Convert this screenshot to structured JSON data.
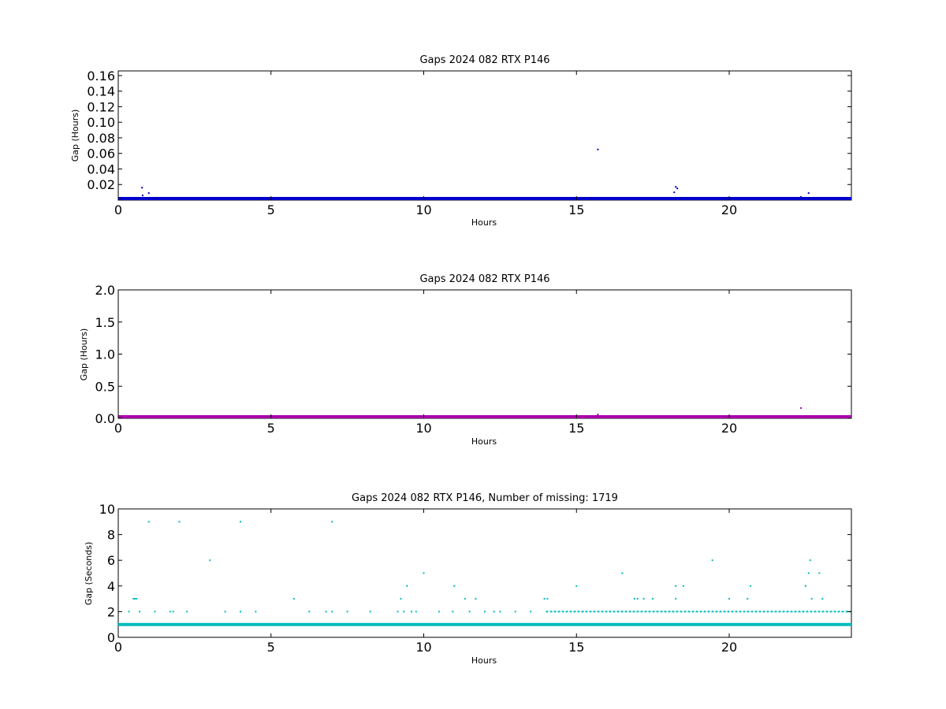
{
  "chart_data": [
    {
      "type": "scatter",
      "title": "Gaps 2024 082 RTX  P146",
      "xlabel": "Hours",
      "ylabel": "Gap (Hours)",
      "xlim": [
        0,
        24
      ],
      "ylim": [
        0,
        0.166
      ],
      "xticks": [
        0,
        5,
        10,
        15,
        20
      ],
      "yticks": [
        0.02,
        0.04,
        0.06,
        0.08,
        0.1,
        0.12,
        0.14,
        0.16
      ],
      "ytick_labels": [
        "0.02",
        "0.04",
        "0.06",
        "0.08",
        "0.10",
        "0.12",
        "0.14",
        "0.16"
      ],
      "color": "#0000cc",
      "baseline": {
        "y": 0.0003,
        "x_start": 0,
        "x_end": 24
      },
      "series": [
        {
          "x": [
            0.78,
            0.8,
            0.82,
            1.0,
            1.02,
            2.0,
            4.0,
            7.0,
            9.0,
            11.5,
            13.5,
            15.7,
            15.72,
            18.2,
            18.25,
            18.3,
            20.0,
            22.35,
            22.45,
            22.6
          ],
          "values": [
            0.016,
            0.006,
            0.003,
            0.009,
            0.003,
            0.002,
            0.002,
            0.002,
            0.002,
            0.002,
            0.002,
            0.065,
            0.001,
            0.01,
            0.017,
            0.015,
            0.002,
            0.004,
            0.002,
            0.009
          ]
        }
      ]
    },
    {
      "type": "scatter",
      "title": "Gaps 2024 082 RTX  P146",
      "xlabel": "Hours",
      "ylabel": "Gap (Hours)",
      "xlim": [
        0,
        24
      ],
      "ylim": [
        0,
        2.0
      ],
      "xticks": [
        0,
        5,
        10,
        15,
        20
      ],
      "yticks": [
        0.0,
        0.5,
        1.0,
        1.5,
        2.0
      ],
      "ytick_labels": [
        "0.0",
        "0.5",
        "1.0",
        "1.5",
        "2.0"
      ],
      "color": "#aa00aa",
      "baseline": {
        "y": 0.003,
        "x_start": 0,
        "x_end": 24
      },
      "series": [
        {
          "x": [
            15.7,
            22.35
          ],
          "values": [
            0.06,
            0.16
          ]
        }
      ]
    },
    {
      "type": "scatter",
      "title": "Gaps 2024 082 RTX  P146, Number of missing: 1719",
      "xlabel": "Hours",
      "ylabel": "Gap (Seconds)",
      "xlim": [
        0,
        24
      ],
      "ylim": [
        0,
        10
      ],
      "xticks": [
        0,
        5,
        10,
        15,
        20
      ],
      "yticks": [
        0,
        2,
        4,
        6,
        8,
        10
      ],
      "ytick_labels": [
        "0",
        "2",
        "4",
        "6",
        "8",
        "10"
      ],
      "color": "#00bbbb",
      "baseline": {
        "y": 1,
        "x_start": 0,
        "x_end": 24
      },
      "dense_ranges": [
        {
          "y": 2,
          "x_start": 14.0,
          "x_end": 24
        }
      ],
      "series": [
        {
          "x": [
            0.35,
            0.5,
            0.55,
            0.6,
            0.7,
            1.0,
            1.2,
            1.7,
            1.8,
            2.0,
            2.25,
            3.0,
            3.5,
            4.0,
            4.0,
            4.5,
            5.75,
            6.25,
            6.8,
            7.0,
            7.0,
            7.5,
            8.25,
            9.15,
            9.25,
            9.35,
            9.45,
            9.6,
            9.75,
            10.0,
            10.5,
            10.95,
            11.0,
            11.35,
            11.5,
            11.7,
            12.0,
            12.3,
            12.5,
            13.0,
            13.5,
            13.95,
            14.05,
            15.0,
            16.5,
            16.9,
            17.0,
            17.2,
            17.5,
            18.25,
            18.25,
            18.5,
            19.45,
            20.0,
            20.6,
            20.7,
            22.5,
            22.6,
            22.65,
            22.7,
            22.95,
            23.05
          ],
          "values": [
            2,
            3,
            3,
            3,
            2,
            9,
            2,
            2,
            2,
            9,
            2,
            6,
            2,
            9,
            2,
            2,
            3,
            2,
            2,
            9,
            2,
            2,
            2,
            2,
            3,
            2,
            4,
            2,
            2,
            5,
            2,
            2,
            4,
            3,
            2,
            3,
            2,
            2,
            2,
            2,
            2,
            3,
            3,
            4,
            5,
            3,
            3,
            3,
            3,
            4,
            3,
            4,
            6,
            3,
            3,
            4,
            4,
            5,
            6,
            3,
            5,
            3
          ]
        }
      ]
    }
  ]
}
